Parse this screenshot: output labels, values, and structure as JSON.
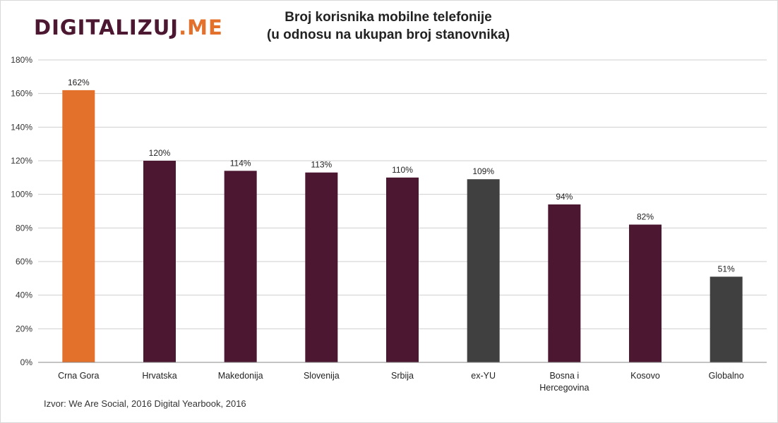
{
  "logo": {
    "word": "DIGITALIZUJ",
    "ext": ".ME"
  },
  "colors": {
    "highlight": "#e3702b",
    "primary": "#4b1731",
    "neutral": "#404040",
    "grid": "#cfcfcf"
  },
  "chart_data": {
    "type": "bar",
    "title": [
      "Broj korisnika mobilne telefonije",
      "(u odnosu na ukupan broj stanovnika)"
    ],
    "xlabel": "",
    "ylabel": "",
    "ylim": [
      0,
      180
    ],
    "yticks": [
      0,
      20,
      40,
      60,
      80,
      100,
      120,
      140,
      160,
      180
    ],
    "ytick_suffix": "%",
    "grid": true,
    "categories": [
      [
        "Crna Gora"
      ],
      [
        "Hrvatska"
      ],
      [
        "Makedonija"
      ],
      [
        "Slovenija"
      ],
      [
        "Srbija"
      ],
      [
        "ex-YU"
      ],
      [
        "Bosna i",
        "Hercegovina"
      ],
      [
        "Kosovo"
      ],
      [
        "Globalno"
      ]
    ],
    "values": [
      162,
      120,
      114,
      113,
      110,
      109,
      94,
      82,
      51
    ],
    "value_labels": [
      "162%",
      "120%",
      "114%",
      "113%",
      "110%",
      "109%",
      "94%",
      "82%",
      "51%"
    ],
    "bar_colors": [
      "#e3702b",
      "#4b1731",
      "#4b1731",
      "#4b1731",
      "#4b1731",
      "#404040",
      "#4b1731",
      "#4b1731",
      "#404040"
    ],
    "source": "Izvor: We Are Social, 2016 Digital Yearbook, 2016"
  }
}
